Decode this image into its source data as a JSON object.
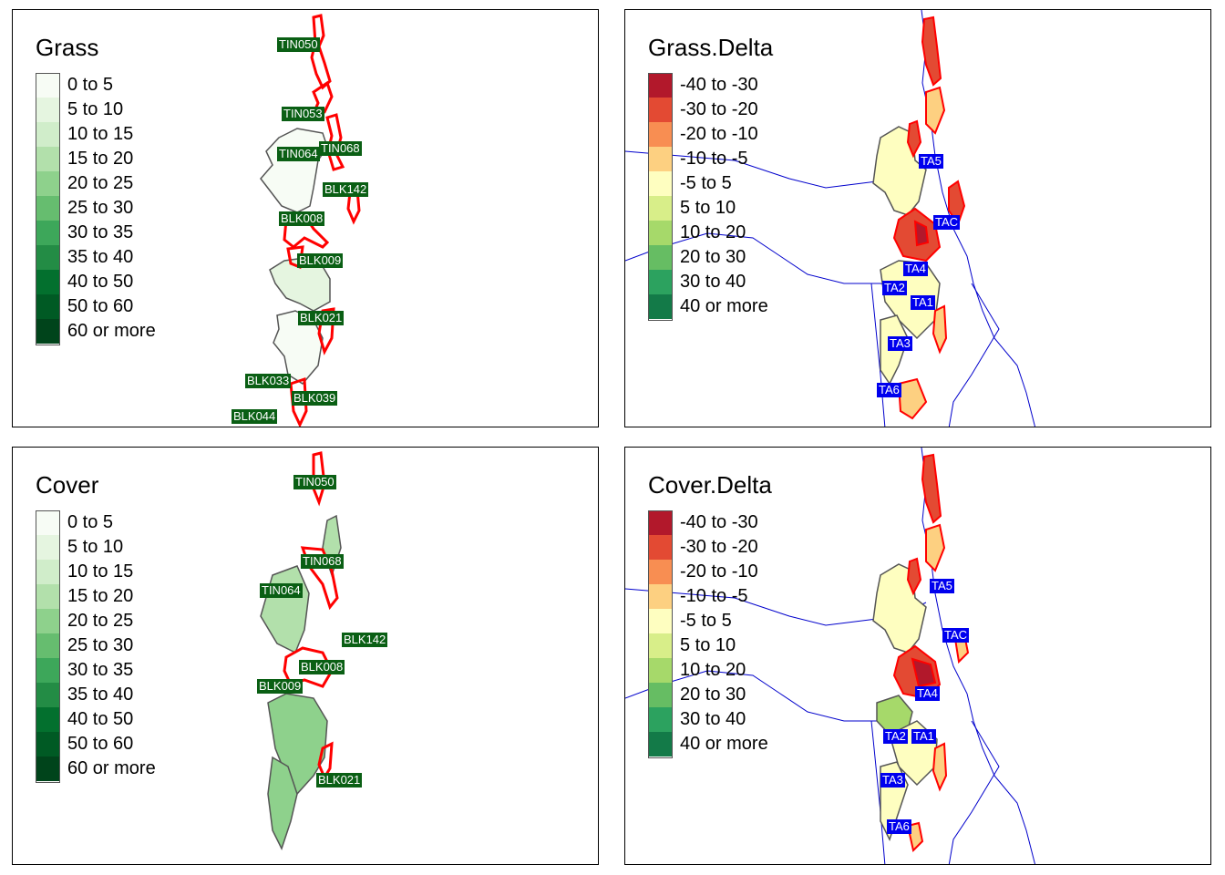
{
  "panels": {
    "grass": {
      "title": "Grass",
      "legend": [
        {
          "label": "0 to 5",
          "color": "#f7fcf5"
        },
        {
          "label": "5 to 10",
          "color": "#e5f5e0"
        },
        {
          "label": "10 to 15",
          "color": "#d0edca"
        },
        {
          "label": "15 to 20",
          "color": "#b2e0ab"
        },
        {
          "label": "20 to 25",
          "color": "#8ed18c"
        },
        {
          "label": "25 to 30",
          "color": "#66bd6f"
        },
        {
          "label": "30 to 35",
          "color": "#3da75a"
        },
        {
          "label": "35 to 40",
          "color": "#238c45"
        },
        {
          "label": "40 to 50",
          "color": "#03702e"
        },
        {
          "label": "50 to 60",
          "color": "#005a24"
        },
        {
          "label": "60 or more",
          "color": "#00441b"
        }
      ],
      "labels": [
        "TIN050",
        "TIN053",
        "TIN064",
        "TIN068",
        "BLK142",
        "BLK008",
        "BLK009",
        "BLK021",
        "BLK033",
        "BLK039",
        "BLK044"
      ]
    },
    "grass_delta": {
      "title": "Grass.Delta",
      "legend": [
        {
          "label": "-40 to -30",
          "color": "#b2182b"
        },
        {
          "label": "-30 to -20",
          "color": "#e34a33"
        },
        {
          "label": "-20 to -10",
          "color": "#f88e52"
        },
        {
          "label": "-10 to -5",
          "color": "#fdd081"
        },
        {
          "label": "-5 to 5",
          "color": "#fefec0"
        },
        {
          "label": "5 to 10",
          "color": "#d8ee89"
        },
        {
          "label": "10 to 20",
          "color": "#a6d96a"
        },
        {
          "label": "20 to 30",
          "color": "#66bd63"
        },
        {
          "label": "30 to 40",
          "color": "#2ca25f"
        },
        {
          "label": "40 or more",
          "color": "#137a48"
        }
      ],
      "labels": [
        "TA5",
        "TAC",
        "TA4",
        "TA2",
        "TA1",
        "TA3",
        "TA6"
      ]
    },
    "cover": {
      "title": "Cover",
      "legend": [
        {
          "label": "0 to 5",
          "color": "#f7fcf5"
        },
        {
          "label": "5 to 10",
          "color": "#e5f5e0"
        },
        {
          "label": "10 to 15",
          "color": "#d0edca"
        },
        {
          "label": "15 to 20",
          "color": "#b2e0ab"
        },
        {
          "label": "20 to 25",
          "color": "#8ed18c"
        },
        {
          "label": "25 to 30",
          "color": "#66bd6f"
        },
        {
          "label": "30 to 35",
          "color": "#3da75a"
        },
        {
          "label": "35 to 40",
          "color": "#238c45"
        },
        {
          "label": "40 to 50",
          "color": "#03702e"
        },
        {
          "label": "50 to 60",
          "color": "#005a24"
        },
        {
          "label": "60 or more",
          "color": "#00441b"
        }
      ],
      "labels": [
        "TIN050",
        "TIN068",
        "TIN064",
        "BLK142",
        "BLK008",
        "BLK009",
        "BLK021"
      ]
    },
    "cover_delta": {
      "title": "Cover.Delta",
      "legend": [
        {
          "label": "-40 to -30",
          "color": "#b2182b"
        },
        {
          "label": "-30 to -20",
          "color": "#e34a33"
        },
        {
          "label": "-20 to -10",
          "color": "#f88e52"
        },
        {
          "label": "-10 to -5",
          "color": "#fdd081"
        },
        {
          "label": "-5 to 5",
          "color": "#fefec0"
        },
        {
          "label": "5 to 10",
          "color": "#d8ee89"
        },
        {
          "label": "10 to 20",
          "color": "#a6d96a"
        },
        {
          "label": "20 to 30",
          "color": "#66bd63"
        },
        {
          "label": "30 to 40",
          "color": "#2ca25f"
        },
        {
          "label": "40 or more",
          "color": "#137a48"
        }
      ],
      "labels": [
        "TA5",
        "TAC",
        "TA4",
        "TA2",
        "TA1",
        "TA3",
        "TA6"
      ]
    }
  },
  "colors": {
    "outline_highlight": "#ff0000",
    "outline_base": "#555555",
    "river": "#0000cc",
    "green_tag": "#0a5f14",
    "blue_tag": "#0000ee"
  }
}
